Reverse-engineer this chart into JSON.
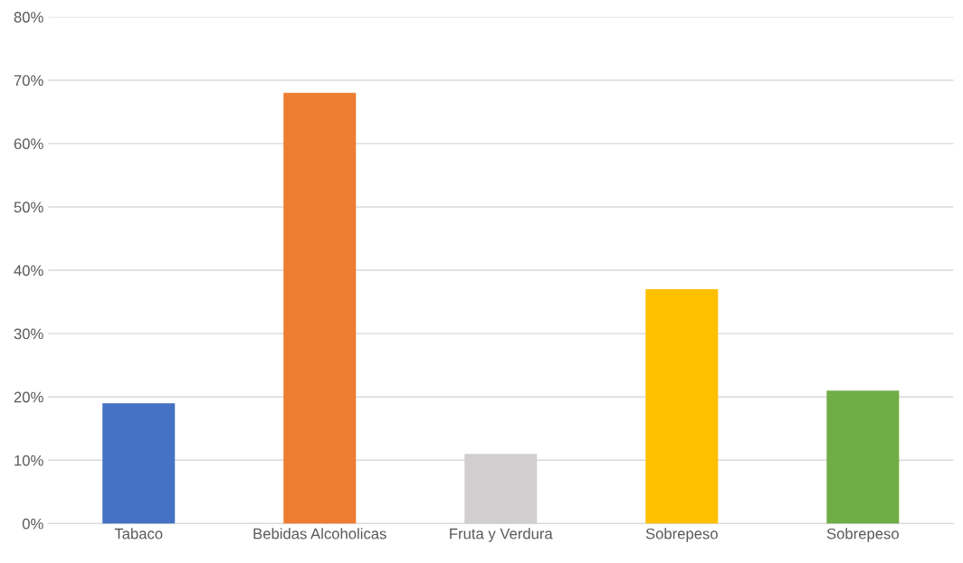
{
  "chart_data": {
    "type": "bar",
    "categories": [
      "Tabaco",
      "Bebidas Alcoholicas",
      "Fruta y Verdura",
      "Sobrepeso",
      "Sobrepeso"
    ],
    "values": [
      19,
      68,
      11,
      37,
      21
    ],
    "colors": [
      "#4472c4",
      "#ed7d31",
      "#d0cece",
      "#ffc000",
      "#70ad47"
    ],
    "ylim": [
      0,
      80
    ],
    "yticks": [
      {
        "value": 0,
        "label": "0%"
      },
      {
        "value": 10,
        "label": "10%"
      },
      {
        "value": 20,
        "label": "20%"
      },
      {
        "value": 30,
        "label": "30%"
      },
      {
        "value": 40,
        "label": "40%"
      },
      {
        "value": 50,
        "label": "50%"
      },
      {
        "value": 60,
        "label": "60%"
      },
      {
        "value": 70,
        "label": "70%"
      },
      {
        "value": 80,
        "label": "80%"
      }
    ],
    "grid": "y"
  }
}
